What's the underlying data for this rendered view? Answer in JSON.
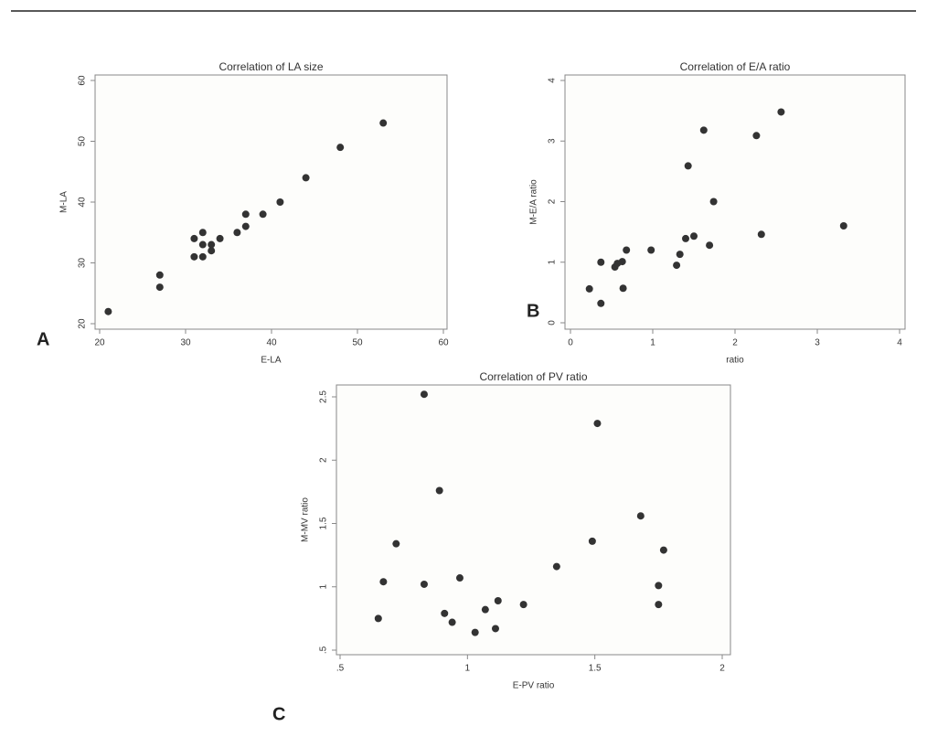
{
  "chart_data": [
    {
      "type": "scatter",
      "panel": "A",
      "title": "Correlation of LA size",
      "x_label": "E-LA",
      "y_label": "M-LA",
      "color": "#333333",
      "x": [
        21,
        27,
        27,
        31,
        31,
        32,
        32,
        32,
        33,
        33,
        34,
        36,
        37,
        37,
        39,
        41,
        44,
        48,
        53
      ],
      "values": [
        22,
        28,
        26,
        34,
        31,
        35,
        33,
        31,
        33,
        32,
        34,
        35,
        38,
        36,
        38,
        40,
        44,
        49,
        53
      ],
      "xlim": [
        20,
        60
      ],
      "xticks": [
        20,
        30,
        40,
        50,
        60
      ],
      "ylim": [
        20,
        60
      ],
      "yticks": [
        20,
        30,
        40,
        50,
        60
      ]
    },
    {
      "type": "scatter",
      "panel": "B",
      "title": "Correlation of E/A ratio",
      "x_label": "ratio",
      "y_label": "M-E/A ratio",
      "color": "#333333",
      "x": [
        0.23,
        0.37,
        0.37,
        0.54,
        0.57,
        0.63,
        0.64,
        0.68,
        0.98,
        1.29,
        1.33,
        1.4,
        1.5,
        1.43,
        1.62,
        1.69,
        1.74,
        2.26,
        2.32,
        2.56,
        3.32
      ],
      "values": [
        0.56,
        0.32,
        1.0,
        0.92,
        0.98,
        1.01,
        0.57,
        1.2,
        1.2,
        0.95,
        1.13,
        1.39,
        1.43,
        2.59,
        3.18,
        1.28,
        2.0,
        3.09,
        1.46,
        3.48,
        1.6
      ],
      "xlim": [
        0,
        4
      ],
      "xticks": [
        0,
        1,
        2,
        3,
        4
      ],
      "ylim": [
        0,
        4
      ],
      "yticks": [
        0,
        1,
        2,
        3,
        4
      ]
    },
    {
      "type": "scatter",
      "panel": "C",
      "title": "Correlation of PV ratio",
      "x_label": "E-PV ratio",
      "y_label": "M-MV ratio",
      "color": "#333333",
      "x": [
        0.65,
        0.67,
        0.72,
        0.83,
        0.83,
        0.89,
        0.91,
        0.94,
        0.97,
        1.03,
        1.07,
        1.11,
        1.12,
        1.22,
        1.35,
        1.49,
        1.51,
        1.68,
        1.75,
        1.75,
        1.77
      ],
      "values": [
        0.75,
        1.04,
        1.34,
        2.52,
        1.02,
        1.76,
        0.79,
        0.72,
        1.07,
        0.64,
        0.82,
        0.67,
        0.89,
        0.86,
        1.16,
        1.36,
        2.29,
        1.56,
        1.01,
        0.86,
        1.29
      ],
      "xlim": [
        0.5,
        2
      ],
      "xticks": [
        {
          "value": 0.5,
          "label": ".5"
        },
        1,
        1.5,
        2
      ],
      "ylim": [
        0.5,
        2.5
      ],
      "yticks": [
        {
          "value": 0.5,
          "label": ".5"
        },
        1,
        1.5,
        2,
        2.5
      ]
    }
  ]
}
